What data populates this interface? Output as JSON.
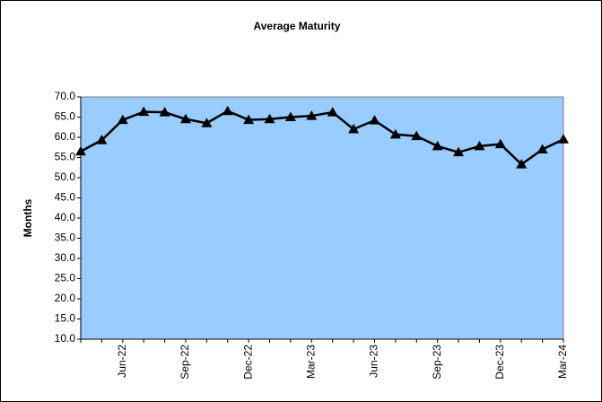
{
  "chart_data": {
    "type": "line",
    "title": "Average Maturity",
    "y_label": "Months",
    "categories": [
      null,
      null,
      "Jun-22",
      null,
      null,
      "Sep-22",
      null,
      null,
      "Dec-22",
      null,
      null,
      "Mar-23",
      null,
      null,
      "Jun-23",
      null,
      null,
      "Sep-23",
      null,
      null,
      "Dec-23",
      null,
      null,
      "Mar-24"
    ],
    "series": [
      {
        "name": "Average Maturity",
        "color": "#000000",
        "values": [
          56.5,
          59.3,
          64.3,
          66.3,
          66.2,
          64.5,
          63.5,
          66.5,
          64.3,
          64.5,
          65.0,
          65.3,
          66.2,
          62.0,
          64.2,
          60.7,
          60.3,
          57.8,
          56.3,
          57.8,
          58.3,
          53.3,
          57.0,
          59.5
        ]
      }
    ],
    "ylim": [
      10,
      70
    ],
    "yticks": [
      {
        "value": 10,
        "label": "10.0"
      },
      {
        "value": 15,
        "label": "15.0"
      },
      {
        "value": 20,
        "label": "20.0"
      },
      {
        "value": 25,
        "label": "25.0"
      },
      {
        "value": 30,
        "label": "30.0"
      },
      {
        "value": 35,
        "label": "35.0"
      },
      {
        "value": 40,
        "label": "40.0"
      },
      {
        "value": 45,
        "label": "45.0"
      },
      {
        "value": 50,
        "label": "50.0"
      },
      {
        "value": 55,
        "label": "55.0"
      },
      {
        "value": 60,
        "label": "60.0"
      },
      {
        "value": 65,
        "label": "65.0"
      },
      {
        "value": 70,
        "label": "70.0"
      }
    ],
    "plot_background": "#99ccff"
  }
}
